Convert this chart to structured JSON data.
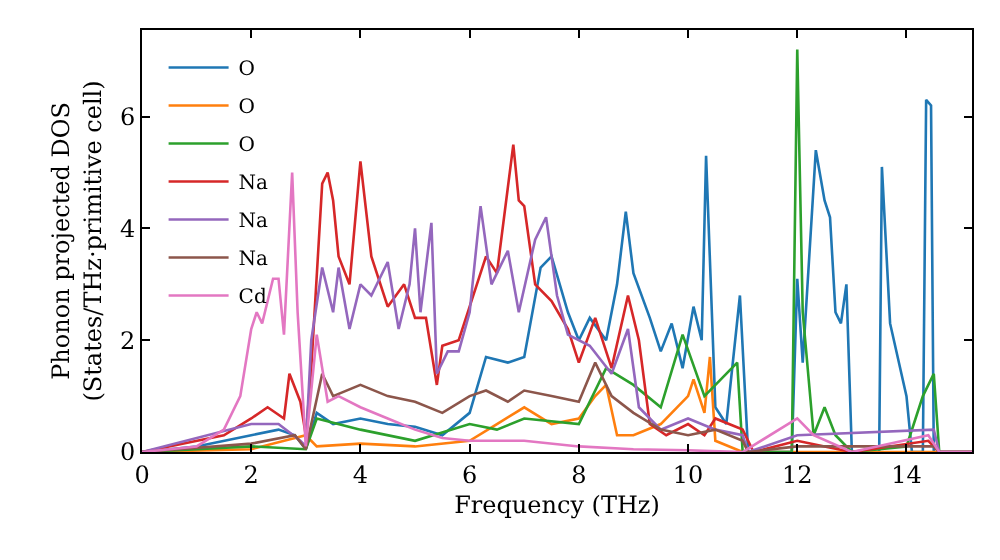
{
  "chart_data": {
    "type": "line",
    "xlabel": "Frequency (THz)",
    "ylabel": "Phonon projected DOS\n(States/THz·primitive cell)",
    "xlim": [
      0,
      15.2
    ],
    "ylim": [
      0,
      7.55
    ],
    "xticks": [
      0,
      2,
      4,
      6,
      8,
      10,
      12,
      14
    ],
    "yticks": [
      0,
      2,
      4,
      6
    ],
    "legend": "top left",
    "marker": "none",
    "line_style": "solid",
    "series": [
      {
        "name": "O",
        "color": "#1f77b4",
        "x": [
          0,
          1,
          2,
          2.5,
          2.8,
          3.0,
          3.2,
          3.5,
          4,
          4.5,
          5,
          5.5,
          6,
          6.3,
          6.7,
          7,
          7.3,
          7.5,
          7.8,
          8,
          8.2,
          8.5,
          8.7,
          8.86,
          9.0,
          9.3,
          9.5,
          9.7,
          9.9,
          10.1,
          10.25,
          10.33,
          10.5,
          10.7,
          10.95,
          11.1,
          11.9,
          12.0,
          12.1,
          12.34,
          12.5,
          12.6,
          12.7,
          12.8,
          12.9,
          13.0,
          13.5,
          13.55,
          13.7,
          14.0,
          14.1,
          14.3,
          14.36,
          14.45,
          14.5,
          15.2
        ],
        "values": [
          0,
          0.1,
          0.3,
          0.4,
          0.3,
          0.05,
          0.7,
          0.5,
          0.6,
          0.5,
          0.45,
          0.3,
          0.7,
          1.7,
          1.6,
          1.7,
          3.3,
          3.5,
          2.5,
          2.0,
          2.4,
          2.0,
          3.0,
          4.3,
          3.2,
          2.4,
          1.8,
          2.3,
          1.5,
          2.6,
          2.0,
          5.3,
          0.8,
          0.5,
          2.8,
          0,
          0,
          3.1,
          1.6,
          5.4,
          4.5,
          4.2,
          2.5,
          2.3,
          3.0,
          0,
          0,
          5.1,
          2.3,
          1.0,
          0,
          0,
          6.3,
          6.2,
          0,
          0
        ]
      },
      {
        "name": "O",
        "color": "#ff7f0e",
        "x": [
          0,
          2,
          3,
          3.2,
          4,
          5,
          6,
          6.5,
          7,
          7.5,
          8,
          8.3,
          8.5,
          8.7,
          9.0,
          9.5,
          10,
          10.1,
          10.3,
          10.4,
          10.5,
          11,
          15.2
        ],
        "values": [
          0,
          0.05,
          0.3,
          0.1,
          0.15,
          0.1,
          0.2,
          0.5,
          0.8,
          0.5,
          0.6,
          1.0,
          1.2,
          0.3,
          0.3,
          0.5,
          1.0,
          1.3,
          0.7,
          1.7,
          0.2,
          0,
          0
        ]
      },
      {
        "name": "O",
        "color": "#2ca02c",
        "x": [
          0,
          2,
          3,
          3.2,
          4,
          5,
          6,
          6.5,
          7,
          8,
          8.5,
          9,
          9.5,
          9.9,
          10.3,
          10.9,
          11,
          11.9,
          12.0,
          12.1,
          12.3,
          12.5,
          12.7,
          13.0,
          14,
          14.3,
          14.5,
          14.6,
          15.2
        ],
        "values": [
          0,
          0.1,
          0.05,
          0.6,
          0.4,
          0.2,
          0.5,
          0.4,
          0.6,
          0.5,
          1.5,
          1.2,
          0.8,
          2.1,
          1.0,
          1.6,
          0,
          0,
          7.2,
          2.5,
          0.3,
          0.8,
          0.3,
          0,
          0.1,
          1.0,
          1.4,
          0,
          0
        ]
      },
      {
        "name": "Na",
        "color": "#d62728",
        "x": [
          0,
          1.5,
          2,
          2.3,
          2.6,
          2.7,
          2.9,
          3.0,
          3.1,
          3.3,
          3.4,
          3.5,
          3.6,
          3.8,
          4.0,
          4.2,
          4.5,
          4.8,
          5.0,
          5.2,
          5.4,
          5.5,
          5.8,
          6.0,
          6.3,
          6.5,
          6.8,
          6.9,
          7.0,
          7.2,
          7.5,
          7.8,
          8,
          8.3,
          8.6,
          8.9,
          9.1,
          9.3,
          9.6,
          10,
          10.3,
          10.5,
          11,
          11.2,
          12,
          12.5,
          13,
          14.4,
          14.6,
          15.2
        ],
        "values": [
          0,
          0.3,
          0.6,
          0.8,
          0.6,
          1.4,
          0.9,
          0.3,
          1.5,
          4.8,
          5.0,
          4.5,
          3.5,
          3.0,
          5.2,
          3.5,
          2.6,
          3.0,
          2.4,
          2.4,
          1.2,
          1.9,
          2.0,
          2.6,
          3.5,
          3.2,
          5.5,
          4.5,
          4.4,
          3.0,
          2.7,
          2.2,
          1.6,
          2.4,
          1.5,
          2.8,
          2.0,
          0.5,
          0.3,
          0.5,
          0.3,
          0.6,
          0.4,
          0,
          0.2,
          0.1,
          0,
          0.2,
          0,
          0
        ]
      },
      {
        "name": "Na",
        "color": "#9467bd",
        "x": [
          0,
          2,
          2.5,
          2.9,
          3.0,
          3.1,
          3.3,
          3.5,
          3.6,
          3.8,
          4.0,
          4.2,
          4.5,
          4.7,
          4.9,
          5.0,
          5.1,
          5.3,
          5.4,
          5.6,
          5.8,
          6,
          6.2,
          6.4,
          6.7,
          6.9,
          7.2,
          7.4,
          7.6,
          7.8,
          8.2,
          8.6,
          8.9,
          9.1,
          9.5,
          10,
          10.5,
          11,
          11.1,
          12,
          14.5,
          14.6,
          15.2
        ],
        "values": [
          0,
          0.5,
          0.5,
          0.2,
          0.1,
          2.0,
          3.3,
          2.5,
          3.3,
          2.2,
          3.0,
          2.8,
          3.4,
          2.2,
          3.0,
          4.0,
          2.5,
          4.1,
          1.4,
          1.8,
          1.8,
          2.5,
          4.4,
          3.0,
          3.6,
          2.5,
          3.8,
          4.2,
          2.8,
          2.1,
          1.9,
          1.4,
          2.2,
          0.8,
          0.4,
          0.6,
          0.4,
          0.3,
          0,
          0.3,
          0.4,
          0,
          0
        ]
      },
      {
        "name": "Na",
        "color": "#8c564b",
        "x": [
          0,
          2,
          2.8,
          3.0,
          3.3,
          3.5,
          4.0,
          4.5,
          5,
          5.5,
          6,
          6.3,
          6.7,
          7,
          7.5,
          8,
          8.3,
          8.6,
          9,
          9.5,
          10,
          10.5,
          11,
          11.1,
          12,
          14.5,
          14.6,
          15.2
        ],
        "values": [
          0,
          0.15,
          0.3,
          0.05,
          1.4,
          1.0,
          1.2,
          1.0,
          0.9,
          0.7,
          1.0,
          1.1,
          0.9,
          1.1,
          1.0,
          0.9,
          1.6,
          1.0,
          0.7,
          0.4,
          0.3,
          0.4,
          0.2,
          0,
          0.1,
          0.1,
          0,
          0
        ]
      },
      {
        "name": "Cd",
        "color": "#e377c2",
        "x": [
          0,
          1,
          1.5,
          1.8,
          2.0,
          2.1,
          2.2,
          2.4,
          2.5,
          2.6,
          2.75,
          2.85,
          3.0,
          3.2,
          3.4,
          3.6,
          4,
          4.5,
          5,
          5.5,
          6,
          7,
          8,
          9,
          10,
          11,
          12,
          12.3,
          13,
          14.4,
          14.6,
          15.2
        ],
        "values": [
          0,
          0.1,
          0.4,
          1.0,
          2.2,
          2.5,
          2.3,
          3.1,
          3.1,
          2.1,
          5.0,
          2.5,
          0.1,
          2.1,
          0.9,
          1.0,
          0.8,
          0.6,
          0.4,
          0.25,
          0.2,
          0.2,
          0.1,
          0.05,
          0.03,
          0,
          0.6,
          0.3,
          0,
          0.3,
          0,
          0
        ]
      }
    ]
  }
}
